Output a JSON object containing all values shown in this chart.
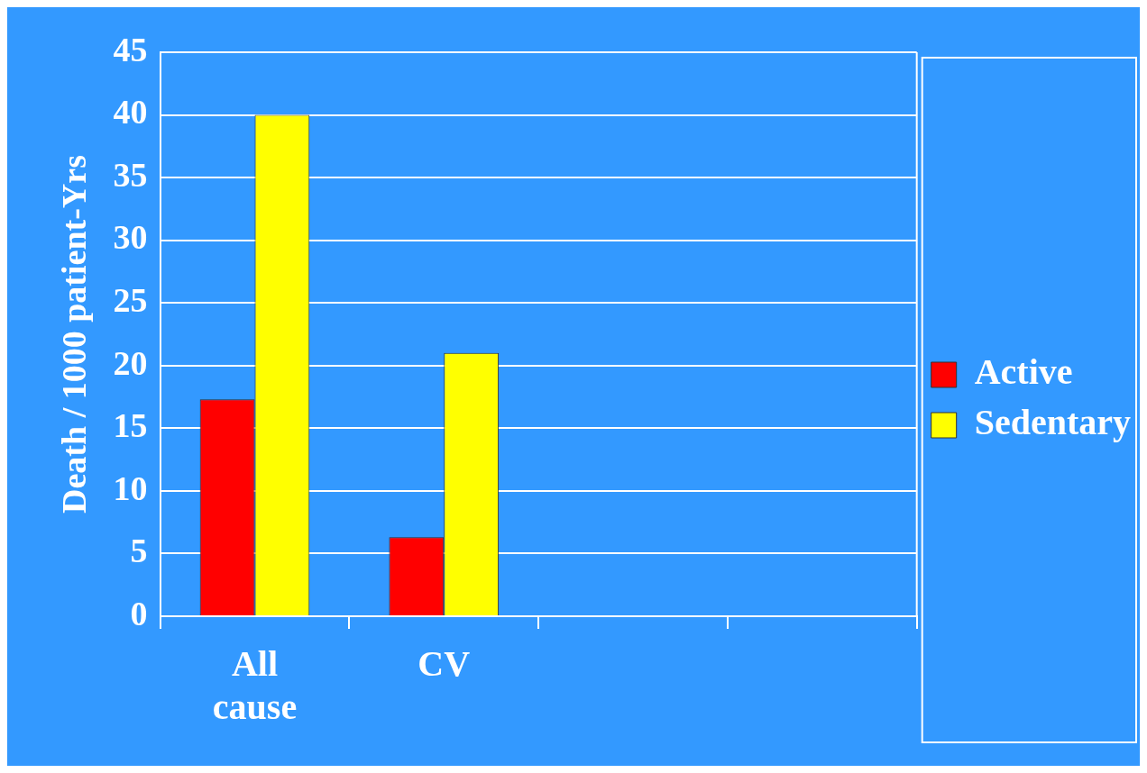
{
  "chart_data": {
    "type": "bar",
    "ylabel": "Death / 1000 patient-Yrs",
    "categories": [
      "All cause",
      "CV",
      null,
      null
    ],
    "series": [
      {
        "name": "Active",
        "color": "#ff0000",
        "values": [
          17.3,
          6.3,
          null,
          null
        ]
      },
      {
        "name": "Sedentary",
        "color": "#ffff00",
        "values": [
          40,
          21,
          null,
          null
        ]
      }
    ],
    "ylim": [
      0,
      45
    ],
    "yticks": [
      0,
      5,
      10,
      15,
      20,
      25,
      30,
      35,
      40,
      45
    ],
    "grid": "y",
    "legend": "right"
  }
}
